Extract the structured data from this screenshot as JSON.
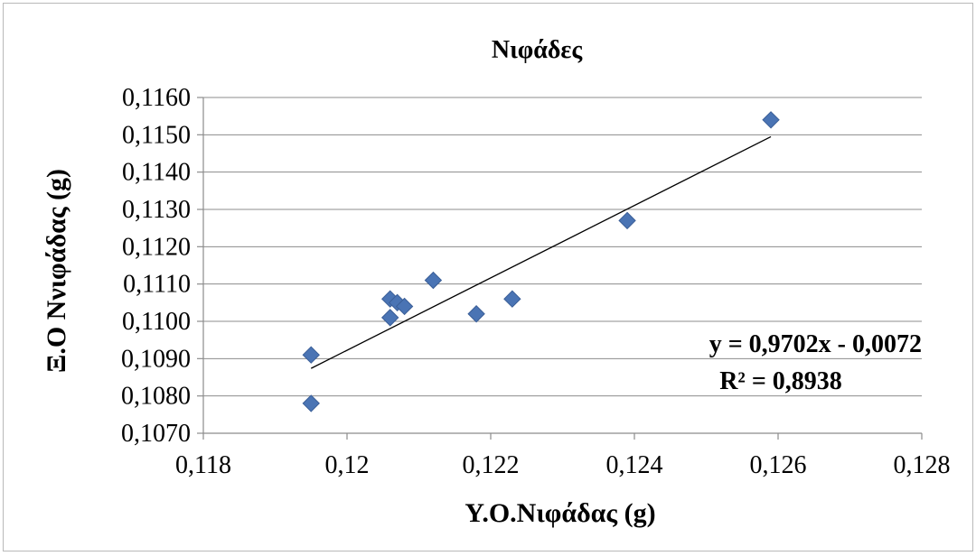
{
  "chart_data": {
    "type": "scatter",
    "title": "Νιφάδες",
    "xlabel": "Υ.Ο.Νιφάδας (g)",
    "ylabel": "Ξ.Ο Ννιφάδας (g)",
    "xlim": [
      0.118,
      0.128
    ],
    "ylim": [
      0.107,
      0.116
    ],
    "x_ticks": [
      "0,118",
      "0,12",
      "0,122",
      "0,124",
      "0,126",
      "0,128"
    ],
    "y_ticks": [
      "0,1070",
      "0,1080",
      "0,1090",
      "0,1100",
      "0,1110",
      "0,1120",
      "0,1130",
      "0,1140",
      "0,1150",
      "0,1160"
    ],
    "grid": "horizontal",
    "series": [
      {
        "points": [
          {
            "x": 0.1195,
            "y": 0.1078
          },
          {
            "x": 0.1195,
            "y": 0.1091
          },
          {
            "x": 0.1206,
            "y": 0.1101
          },
          {
            "x": 0.1206,
            "y": 0.1106
          },
          {
            "x": 0.1207,
            "y": 0.1105
          },
          {
            "x": 0.1208,
            "y": 0.1104
          },
          {
            "x": 0.1212,
            "y": 0.1111
          },
          {
            "x": 0.1218,
            "y": 0.1102
          },
          {
            "x": 0.1223,
            "y": 0.1106
          },
          {
            "x": 0.1239,
            "y": 0.1127
          },
          {
            "x": 0.1259,
            "y": 0.1154
          }
        ],
        "color": "#4a74b4",
        "marker": "diamond"
      }
    ],
    "trendline": {
      "slope": 0.9702,
      "intercept": -0.0072,
      "x_range": [
        0.1195,
        0.1259
      ],
      "equation_label": "y = 0,9702x - 0,0072",
      "r2_label": "R² = 0,8938"
    }
  }
}
